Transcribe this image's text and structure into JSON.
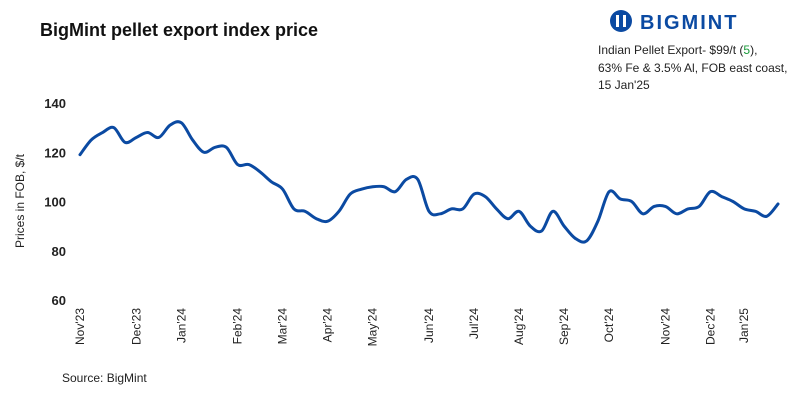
{
  "chart_data": {
    "type": "line",
    "title": "BigMint pellet export index price",
    "logo": "BIGMINT",
    "annotation": {
      "prefix": "Indian Pellet Export- $99/t (",
      "change": "5",
      "suffix": "),",
      "lines": [
        "63% Fe & 3.5% Al, FOB east coast,",
        "15 Jan'25"
      ]
    },
    "y_label": "Prices in FOB, $/t",
    "source": "Source: BigMint",
    "categories": [
      "Nov'23",
      null,
      null,
      null,
      null,
      "Dec'23",
      null,
      null,
      null,
      "Jan'24",
      null,
      null,
      null,
      null,
      "Feb'24",
      null,
      null,
      null,
      "Mar'24",
      null,
      null,
      null,
      "Apr'24",
      null,
      null,
      null,
      "May'24",
      null,
      null,
      null,
      null,
      "Jun'24",
      null,
      null,
      null,
      "Jul'24",
      null,
      null,
      null,
      "Aug'24",
      null,
      null,
      null,
      "Sep'24",
      null,
      null,
      null,
      "Oct'24",
      null,
      null,
      null,
      null,
      "Nov'24",
      null,
      null,
      null,
      "Dec'24",
      null,
      null,
      "Jan'25",
      null,
      null,
      null
    ],
    "series": [
      {
        "name": "Indian Pellet Export",
        "color": "#0b4aa2",
        "values": [
          119,
          125,
          128,
          130,
          124,
          126,
          128,
          126,
          131,
          132,
          125,
          120,
          122,
          122,
          115,
          115,
          112,
          108,
          105,
          97,
          96,
          93,
          92,
          96,
          103,
          105,
          106,
          106,
          104,
          109,
          109,
          96,
          95,
          97,
          97,
          103,
          102,
          97,
          93,
          96,
          90,
          88,
          96,
          90,
          85,
          84,
          92,
          104,
          101,
          100,
          95,
          98,
          98,
          95,
          97,
          98,
          104,
          102,
          100,
          97,
          96,
          94,
          99
        ]
      }
    ],
    "ylim": [
      60,
      140
    ],
    "yticks": [
      60,
      80,
      100,
      120,
      140
    ],
    "grid": false
  }
}
